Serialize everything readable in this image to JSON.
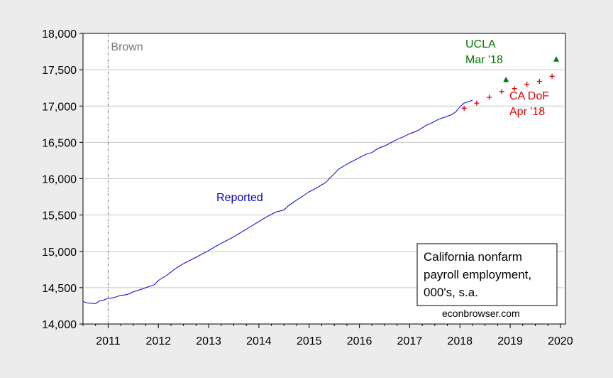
{
  "chart_data": {
    "type": "line",
    "title": "",
    "xlabel": "",
    "ylabel": "",
    "xlim": [
      2010.5,
      2020.1
    ],
    "ylim": [
      14000,
      18000
    ],
    "y_ticks": [
      14000,
      14500,
      15000,
      15500,
      16000,
      16500,
      17000,
      17500,
      18000
    ],
    "y_tick_labels": [
      "14,000",
      "14,500",
      "15,000",
      "15,500",
      "16,000",
      "16,500",
      "17,000",
      "17,500",
      "18,000"
    ],
    "x_ticks": [
      2011,
      2012,
      2013,
      2014,
      2015,
      2016,
      2017,
      2018,
      2019,
      2020
    ],
    "x_tick_labels": [
      "2011",
      "2012",
      "2013",
      "2014",
      "2015",
      "2016",
      "2017",
      "2018",
      "2019",
      "2020"
    ],
    "grid": "horizontal",
    "series": [
      {
        "name": "Reported",
        "color": "#0000cc",
        "style": "line",
        "x": [
          2010.5,
          2010.583,
          2010.667,
          2010.75,
          2010.833,
          2010.917,
          2011.0,
          2011.083,
          2011.167,
          2011.25,
          2011.333,
          2011.417,
          2011.5,
          2011.583,
          2011.667,
          2011.75,
          2011.833,
          2011.917,
          2012.0,
          2012.167,
          2012.333,
          2012.5,
          2012.667,
          2012.833,
          2013.0,
          2013.167,
          2013.333,
          2013.5,
          2013.667,
          2013.833,
          2014.0,
          2014.167,
          2014.333,
          2014.5,
          2014.583,
          2014.75,
          2014.917,
          2015.0,
          2015.167,
          2015.333,
          2015.5,
          2015.583,
          2015.75,
          2015.917,
          2016.0,
          2016.083,
          2016.167,
          2016.25,
          2016.333,
          2016.417,
          2016.5,
          2016.583,
          2016.75,
          2016.917,
          2017.0,
          2017.083,
          2017.167,
          2017.25,
          2017.333,
          2017.417,
          2017.5,
          2017.583,
          2017.667,
          2017.75,
          2017.833,
          2017.917,
          2018.0,
          2018.083,
          2018.167,
          2018.25
        ],
        "values": [
          14310,
          14290,
          14285,
          14280,
          14320,
          14330,
          14355,
          14360,
          14375,
          14395,
          14400,
          14415,
          14445,
          14460,
          14480,
          14500,
          14520,
          14540,
          14600,
          14670,
          14760,
          14830,
          14890,
          14950,
          15010,
          15080,
          15140,
          15200,
          15270,
          15340,
          15410,
          15480,
          15540,
          15570,
          15625,
          15705,
          15780,
          15820,
          15880,
          15950,
          16070,
          16130,
          16200,
          16260,
          16290,
          16320,
          16345,
          16360,
          16400,
          16430,
          16450,
          16480,
          16540,
          16590,
          16620,
          16640,
          16665,
          16700,
          16735,
          16760,
          16790,
          16820,
          16840,
          16860,
          16880,
          16920,
          16990,
          17040,
          17060,
          17080
        ]
      },
      {
        "name": "CA DoF Apr '18",
        "color": "#dd0000",
        "style": "plus-markers",
        "x": [
          2018.083,
          2018.333,
          2018.583,
          2018.833,
          2019.083,
          2019.333,
          2019.583,
          2019.833
        ],
        "values": [
          16970,
          17040,
          17120,
          17200,
          17240,
          17300,
          17340,
          17410
        ]
      },
      {
        "name": "UCLA Mar '18",
        "color": "#007700",
        "style": "triangle-markers",
        "x": [
          2018.917,
          2019.917
        ],
        "values": [
          17360,
          17640
        ]
      }
    ],
    "vline": {
      "x": 2011.0,
      "label": "Brown",
      "color": "#777777"
    },
    "annotations": {
      "reported": "Reported",
      "ucla_line1": "UCLA",
      "ucla_line2": "Mar '18",
      "cadof_line1": "CA DoF",
      "cadof_line2": "Apr '18"
    },
    "legend_box": {
      "line1": "California nonfarm",
      "line2": "payroll employment,",
      "line3": "000's, s.a."
    },
    "source": "econbrowser.com"
  }
}
